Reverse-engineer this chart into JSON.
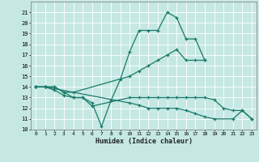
{
  "xlabel": "Humidex (Indice chaleur)",
  "xlim": [
    -0.5,
    23.5
  ],
  "ylim": [
    10,
    22
  ],
  "yticks": [
    10,
    11,
    12,
    13,
    14,
    15,
    16,
    17,
    18,
    19,
    20,
    21
  ],
  "xticks": [
    0,
    1,
    2,
    3,
    4,
    5,
    6,
    7,
    8,
    9,
    10,
    11,
    12,
    13,
    14,
    15,
    16,
    17,
    18,
    19,
    20,
    21,
    22,
    23
  ],
  "bg_color": "#c5e8e3",
  "grid_color": "#b0d8d2",
  "line_color": "#1a7a6a",
  "line1_x": [
    0,
    1,
    2,
    3,
    4,
    5,
    6,
    7,
    8,
    9,
    10,
    11,
    12,
    13,
    14,
    15,
    16,
    17,
    18
  ],
  "line1_y": [
    14,
    14,
    14,
    13.5,
    13,
    13,
    12.5,
    10.3,
    12.7,
    14.7,
    17.3,
    19.3,
    19.3,
    19.3,
    21,
    20.5,
    18.5,
    18.5,
    16.5
  ],
  "line2_x": [
    0,
    1,
    2,
    3,
    4,
    10,
    11,
    12,
    13,
    14,
    15,
    16,
    17,
    18
  ],
  "line2_y": [
    14,
    14,
    14,
    13.5,
    13.5,
    15,
    15.5,
    16,
    16.5,
    17,
    17.5,
    16.5,
    16.5,
    16.5
  ],
  "line3_x": [
    0,
    1,
    2,
    3,
    4,
    5,
    6,
    10,
    11,
    12,
    13,
    14,
    15,
    16,
    17,
    18,
    19,
    20,
    21,
    22,
    23
  ],
  "line3_y": [
    14,
    14,
    13.7,
    13.2,
    13,
    13,
    12.2,
    13,
    13,
    13,
    13,
    13,
    13,
    13,
    13,
    13,
    12.8,
    12,
    11.8,
    11.8,
    11
  ],
  "line4_x": [
    0,
    1,
    10,
    11,
    12,
    13,
    14,
    15,
    16,
    17,
    18,
    19,
    21,
    22,
    23
  ],
  "line4_y": [
    14,
    14,
    12.5,
    12.3,
    12,
    12,
    12,
    12,
    11.8,
    11.5,
    11.2,
    11,
    11,
    11.8,
    11
  ]
}
